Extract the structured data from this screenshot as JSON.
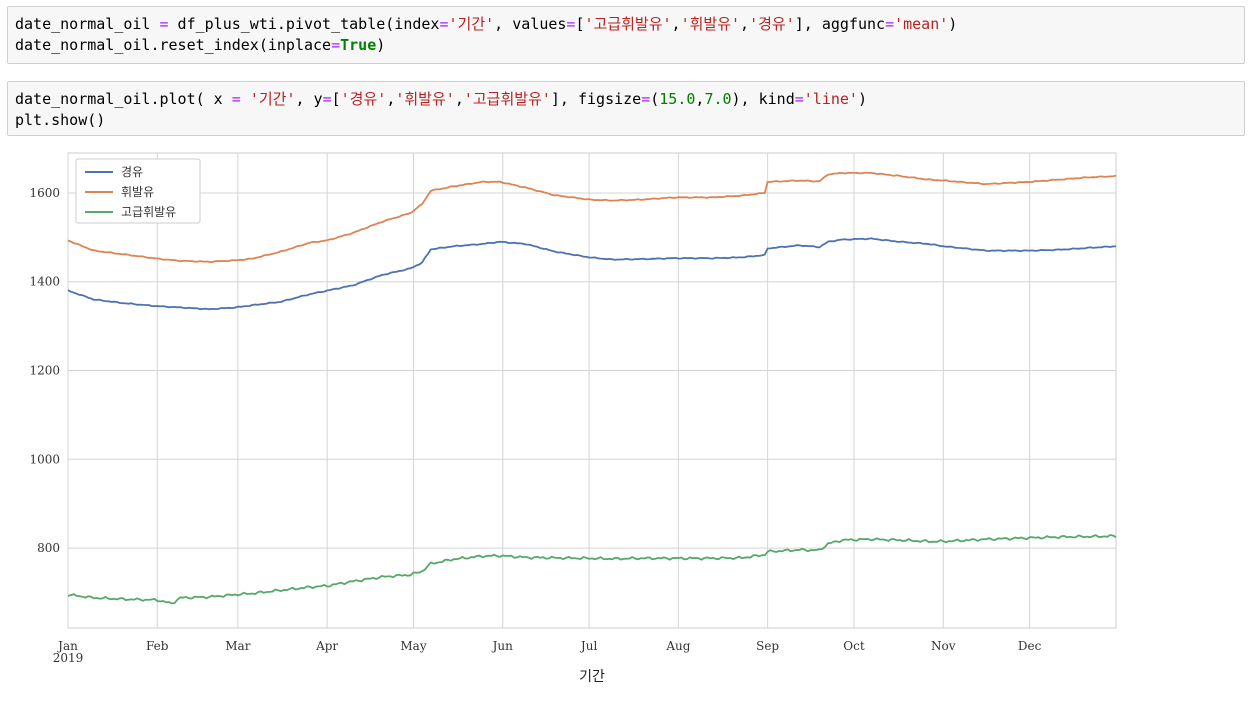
{
  "cells": [
    {
      "lines": [
        [
          {
            "t": "date_normal_oil ",
            "c": ""
          },
          {
            "t": "=",
            "c": "op"
          },
          {
            "t": " df_plus_wti.pivot_table(index",
            "c": ""
          },
          {
            "t": "=",
            "c": "op"
          },
          {
            "t": "'기간'",
            "c": "str"
          },
          {
            "t": ", values",
            "c": ""
          },
          {
            "t": "=",
            "c": "op"
          },
          {
            "t": "[",
            "c": ""
          },
          {
            "t": "'고급휘발유'",
            "c": "str"
          },
          {
            "t": ",",
            "c": ""
          },
          {
            "t": "'휘발유'",
            "c": "str"
          },
          {
            "t": ",",
            "c": ""
          },
          {
            "t": "'경유'",
            "c": "str"
          },
          {
            "t": "], aggfunc",
            "c": ""
          },
          {
            "t": "=",
            "c": "op"
          },
          {
            "t": "'mean'",
            "c": "str"
          },
          {
            "t": ")",
            "c": ""
          }
        ],
        [
          {
            "t": "date_normal_oil.reset_index(inplace",
            "c": ""
          },
          {
            "t": "=",
            "c": "op"
          },
          {
            "t": "True",
            "c": "kw"
          },
          {
            "t": ")",
            "c": ""
          }
        ]
      ]
    },
    {
      "lines": [
        [
          {
            "t": "date_normal_oil.plot( x ",
            "c": ""
          },
          {
            "t": "=",
            "c": "op"
          },
          {
            "t": " ",
            "c": ""
          },
          {
            "t": "'기간'",
            "c": "str"
          },
          {
            "t": ", y",
            "c": ""
          },
          {
            "t": "=",
            "c": "op"
          },
          {
            "t": "[",
            "c": ""
          },
          {
            "t": "'경유'",
            "c": "str"
          },
          {
            "t": ",",
            "c": ""
          },
          {
            "t": "'휘발유'",
            "c": "str"
          },
          {
            "t": ",",
            "c": ""
          },
          {
            "t": "'고급휘발유'",
            "c": "str"
          },
          {
            "t": "], figsize",
            "c": ""
          },
          {
            "t": "=",
            "c": "op"
          },
          {
            "t": "(",
            "c": ""
          },
          {
            "t": "15.0",
            "c": "num"
          },
          {
            "t": ",",
            "c": ""
          },
          {
            "t": "7.0",
            "c": "num"
          },
          {
            "t": "), kind",
            "c": ""
          },
          {
            "t": "=",
            "c": "op"
          },
          {
            "t": "'line'",
            "c": "str"
          },
          {
            "t": ")",
            "c": ""
          }
        ],
        [
          {
            "t": "plt.show()",
            "c": ""
          }
        ]
      ]
    }
  ],
  "chart_data": {
    "type": "line",
    "xlabel": "기간",
    "x_ticks": [
      "Jan",
      "Feb",
      "Mar",
      "Apr",
      "May",
      "Jun",
      "Jul",
      "Aug",
      "Sep",
      "Oct",
      "Nov",
      "Dec"
    ],
    "x_year": "2019",
    "ylim": [
      620,
      1690
    ],
    "y_ticks": [
      800,
      1000,
      1200,
      1400,
      1600
    ],
    "grid": true,
    "legend_position": "top-left",
    "series": [
      {
        "name": "경유",
        "color": "#4c72b0",
        "x": [
          1,
          10,
          20,
          32,
          40,
          50,
          59,
          65,
          75,
          85,
          91,
          100,
          110,
          120,
          124,
          127,
          135,
          145,
          151,
          160,
          170,
          182,
          190,
          200,
          212,
          225,
          235,
          243,
          244,
          255,
          262,
          265,
          270,
          280,
          290,
          300,
          305,
          320,
          335,
          345,
          355,
          365
        ],
        "values": [
          1380,
          1360,
          1352,
          1345,
          1342,
          1338,
          1342,
          1347,
          1355,
          1372,
          1380,
          1392,
          1415,
          1430,
          1443,
          1473,
          1480,
          1485,
          1490,
          1485,
          1468,
          1455,
          1450,
          1451,
          1453,
          1453,
          1455,
          1460,
          1475,
          1482,
          1478,
          1490,
          1495,
          1497,
          1490,
          1485,
          1480,
          1470,
          1470,
          1472,
          1476,
          1480
        ]
      },
      {
        "name": "휘발유",
        "color": "#dd8452",
        "x": [
          1,
          10,
          20,
          32,
          40,
          50,
          59,
          65,
          75,
          85,
          91,
          100,
          110,
          120,
          124,
          127,
          135,
          145,
          151,
          160,
          170,
          182,
          190,
          200,
          212,
          225,
          235,
          243,
          244,
          255,
          262,
          265,
          270,
          280,
          290,
          300,
          305,
          320,
          335,
          345,
          355,
          365
        ],
        "values": [
          1493,
          1470,
          1462,
          1452,
          1447,
          1445,
          1448,
          1452,
          1468,
          1488,
          1493,
          1510,
          1535,
          1555,
          1575,
          1605,
          1615,
          1625,
          1625,
          1612,
          1595,
          1585,
          1583,
          1585,
          1590,
          1590,
          1594,
          1600,
          1625,
          1628,
          1626,
          1642,
          1645,
          1645,
          1638,
          1630,
          1628,
          1620,
          1625,
          1630,
          1635,
          1638
        ]
      },
      {
        "name": "고급휘발유",
        "color": "#55a868",
        "x": [
          1,
          10,
          20,
          32,
          37,
          40,
          50,
          59,
          65,
          75,
          85,
          91,
          100,
          110,
          120,
          124,
          127,
          135,
          145,
          151,
          160,
          170,
          182,
          190,
          200,
          212,
          225,
          235,
          243,
          244,
          255,
          262,
          265,
          270,
          280,
          290,
          300,
          305,
          320,
          335,
          345,
          355,
          365
        ],
        "values": [
          695,
          688,
          685,
          683,
          675,
          688,
          690,
          695,
          698,
          705,
          712,
          715,
          725,
          735,
          740,
          748,
          765,
          775,
          782,
          783,
          779,
          778,
          777,
          776,
          777,
          777,
          777,
          778,
          785,
          792,
          796,
          795,
          810,
          818,
          820,
          818,
          815,
          815,
          820,
          823,
          825,
          826,
          827
        ]
      }
    ]
  }
}
